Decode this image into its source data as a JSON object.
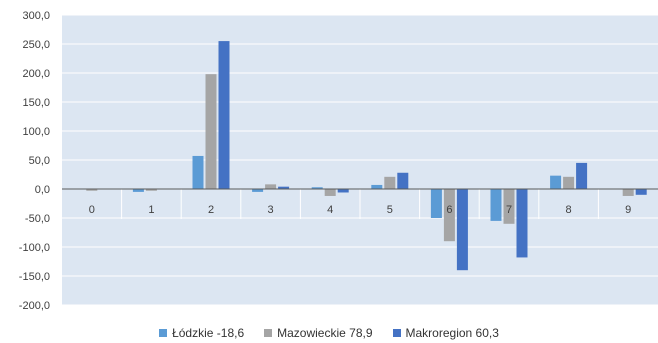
{
  "chart_data": {
    "type": "bar",
    "categories": [
      "0",
      "1",
      "2",
      "3",
      "4",
      "5",
      "6",
      "7",
      "8",
      "9"
    ],
    "series": [
      {
        "name": "Łódzkie -18,6",
        "color": "#5b9bd5",
        "values": [
          0,
          -5,
          57,
          -5,
          3,
          7,
          -50,
          -55,
          23,
          0
        ]
      },
      {
        "name": "Mazowieckie 78,9",
        "color": "#a5a5a5",
        "values": [
          -3,
          -3,
          198,
          8,
          -12,
          21,
          -90,
          -60,
          21,
          -12
        ]
      },
      {
        "name": "Makroregion 60,3",
        "color": "#4472c4",
        "values": [
          0,
          0,
          255,
          4,
          -6,
          28,
          -140,
          -118,
          45,
          -10
        ]
      }
    ],
    "ylim": [
      -200,
      300
    ],
    "yticks": [
      "-200,0",
      "-150,0",
      "-100,0",
      "-50,0",
      "0,0",
      "50,0",
      "100,0",
      "150,0",
      "200,0",
      "250,0",
      "300,0"
    ],
    "grid": true,
    "legend": "bottom",
    "plot_background": "#dce6f2"
  }
}
